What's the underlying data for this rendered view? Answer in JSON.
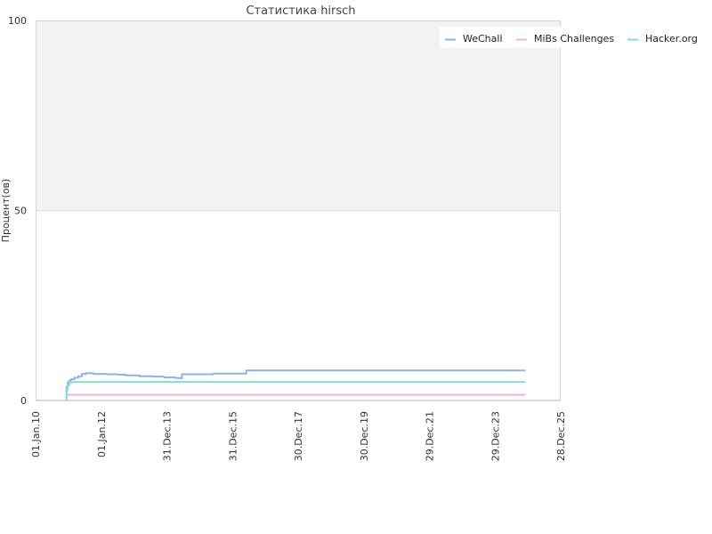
{
  "chart_data": {
    "type": "line",
    "title": "Статистика hirsch",
    "ylabel": "Процент(ов)",
    "xlabel": "",
    "ylim": [
      0,
      100
    ],
    "yticks": [
      "0",
      "50",
      "100"
    ],
    "xlim": [
      "2010-01-01",
      "2025-12-28"
    ],
    "xticks": [
      "01.Jan.10",
      "01.Jan.12",
      "31.Dec.13",
      "31.Dec.15",
      "30.Dec.17",
      "30.Dec.19",
      "29.Dec.21",
      "29.Dec.23",
      "28.Dec.25"
    ],
    "grid": "horizontal",
    "shaded_band": [
      50,
      100
    ],
    "legend_position": "top-right",
    "series": [
      {
        "name": "WeChall",
        "color": "#8cb4ea",
        "points": [
          [
            "2010-12-01",
            0.5
          ],
          [
            "2010-12-10",
            3.5
          ],
          [
            "2010-12-25",
            4.8
          ],
          [
            "2011-01-10",
            5.3
          ],
          [
            "2011-02-01",
            5.6
          ],
          [
            "2011-03-10",
            6.0
          ],
          [
            "2011-04-20",
            6.4
          ],
          [
            "2011-06-01",
            7.0
          ],
          [
            "2011-07-15",
            7.2
          ],
          [
            "2011-10-01",
            7.0
          ],
          [
            "2012-03-01",
            6.9
          ],
          [
            "2012-07-01",
            6.8
          ],
          [
            "2012-10-01",
            6.6
          ],
          [
            "2013-03-01",
            6.4
          ],
          [
            "2013-08-01",
            6.3
          ],
          [
            "2013-12-01",
            6.1
          ],
          [
            "2014-04-01",
            5.9
          ],
          [
            "2014-06-15",
            5.8
          ],
          [
            "2014-06-16",
            6.9
          ],
          [
            "2015-06-01",
            6.9
          ],
          [
            "2015-06-02",
            7.1
          ],
          [
            "2016-06-01",
            7.1
          ],
          [
            "2016-06-02",
            7.9
          ],
          [
            "2024-12-01",
            7.9
          ]
        ]
      },
      {
        "name": "MiBs Challenges",
        "color": "#eeb6d2",
        "points": [
          [
            "2010-12-20",
            1.5
          ],
          [
            "2024-12-01",
            1.5
          ]
        ]
      },
      {
        "name": "Hacker.org",
        "color": "#7ee0d2",
        "points": [
          [
            "2010-12-01",
            0.3
          ],
          [
            "2010-12-10",
            2.5
          ],
          [
            "2010-12-20",
            4.0
          ],
          [
            "2011-01-10",
            4.8
          ],
          [
            "2011-03-01",
            4.9
          ],
          [
            "2024-12-01",
            4.9
          ]
        ]
      }
    ]
  }
}
